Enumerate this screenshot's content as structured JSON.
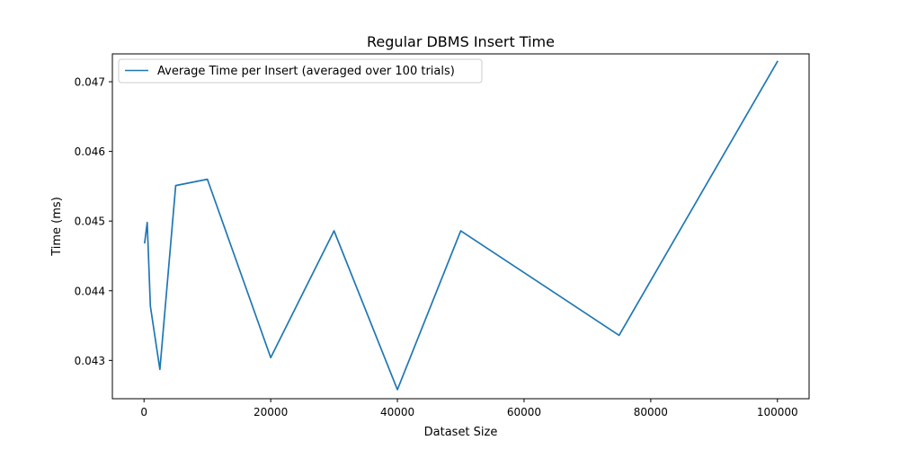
{
  "chart_data": {
    "type": "line",
    "title": "Regular DBMS Insert Time",
    "xlabel": "Dataset Size",
    "ylabel": "Time (ms)",
    "xlim": [
      -5000,
      105000
    ],
    "ylim": [
      0.04245,
      0.0474
    ],
    "xticks": [
      0,
      20000,
      40000,
      60000,
      80000,
      100000
    ],
    "xtick_labels": [
      "0",
      "20000",
      "40000",
      "60000",
      "80000",
      "100000"
    ],
    "yticks": [
      0.043,
      0.044,
      0.045,
      0.046,
      0.047
    ],
    "ytick_labels": [
      "0.043",
      "0.044",
      "0.045",
      "0.046",
      "0.047"
    ],
    "grid": false,
    "legend_position": "top-left",
    "series": [
      {
        "name": "Average Time per Insert (averaged over 100 trials)",
        "color": "#1f77b4",
        "x": [
          100,
          500,
          1000,
          2500,
          5000,
          10000,
          20000,
          30000,
          40000,
          50000,
          75000,
          100000
        ],
        "y": [
          0.04469,
          0.04498,
          0.04378,
          0.04287,
          0.04551,
          0.0456,
          0.04304,
          0.04486,
          0.04258,
          0.04486,
          0.04336,
          0.04729
        ]
      }
    ]
  }
}
